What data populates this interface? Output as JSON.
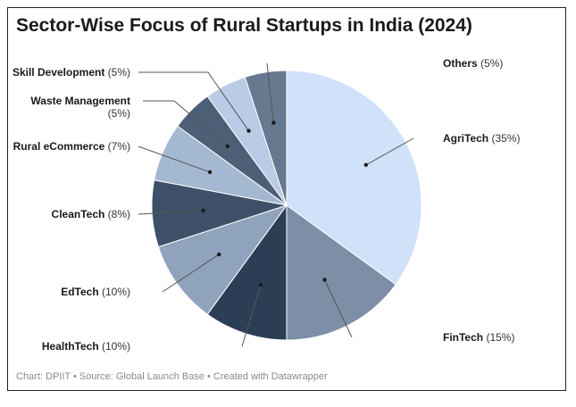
{
  "chart_data": {
    "type": "pie",
    "title": "Sector-Wise Focus of Rural Startups in India (2024)",
    "slices": [
      {
        "label": "AgriTech",
        "pct_text": "(35%)",
        "value": 35,
        "color": "#cfe2fa"
      },
      {
        "label": "FinTech",
        "pct_text": "(15%)",
        "value": 15,
        "color": "#7d8ea6"
      },
      {
        "label": "HealthTech",
        "pct_text": "(10%)",
        "value": 10,
        "color": "#2c3e56"
      },
      {
        "label": "EdTech",
        "pct_text": "(10%)",
        "value": 10,
        "color": "#90a3bd"
      },
      {
        "label": "CleanTech",
        "pct_text": "(8%)",
        "value": 8,
        "color": "#3e5069"
      },
      {
        "label": "Rural eCommerce",
        "pct_text": "(7%)",
        "value": 7,
        "color": "#a5b8d2"
      },
      {
        "label": "Waste Management",
        "pct_text": "(5%)",
        "value": 5,
        "color": "#4d5f77"
      },
      {
        "label": "Skill Development",
        "pct_text": "(5%)",
        "value": 5,
        "color": "#b9cbe5"
      },
      {
        "label": "Others",
        "pct_text": "(5%)",
        "value": 5,
        "color": "#677990"
      }
    ],
    "footer": "Chart: DPIIT • Source: Global Launch Base  • Created with Datawrapper"
  }
}
